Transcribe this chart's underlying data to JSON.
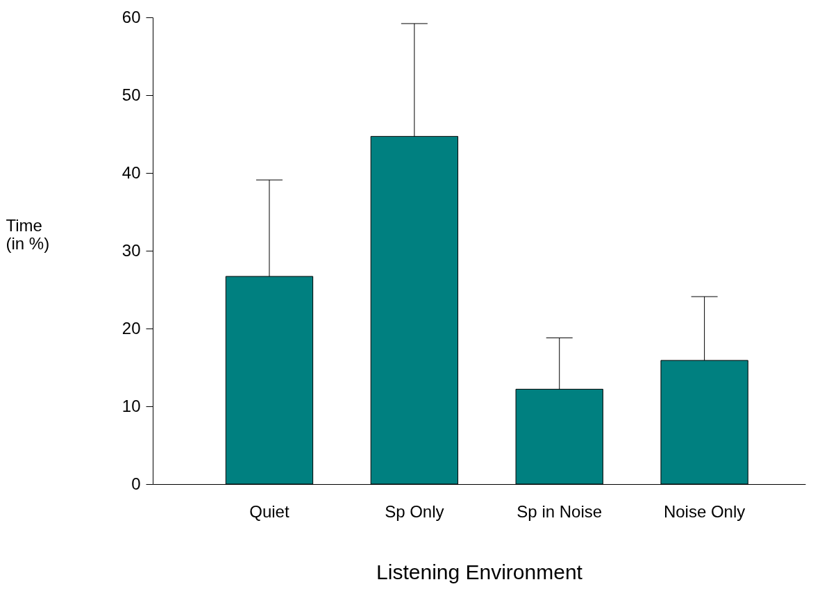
{
  "chart_data": {
    "type": "bar",
    "xlabel": "Listening Environment",
    "ylabel": "Time\n(in %)",
    "categories": [
      "Quiet",
      "Sp Only",
      "Sp in Noise",
      "Noise Only"
    ],
    "values": [
      26.7,
      44.7,
      12.2,
      15.9
    ],
    "errors": [
      [
        26.7,
        39.1
      ],
      [
        44.7,
        59.2
      ],
      [
        12.2,
        18.8
      ],
      [
        15.9,
        24.1
      ]
    ],
    "color": "#008080",
    "ylim": [
      0,
      60
    ],
    "yticks": [
      0,
      10,
      20,
      30,
      40,
      50,
      60
    ],
    "grid": false
  }
}
